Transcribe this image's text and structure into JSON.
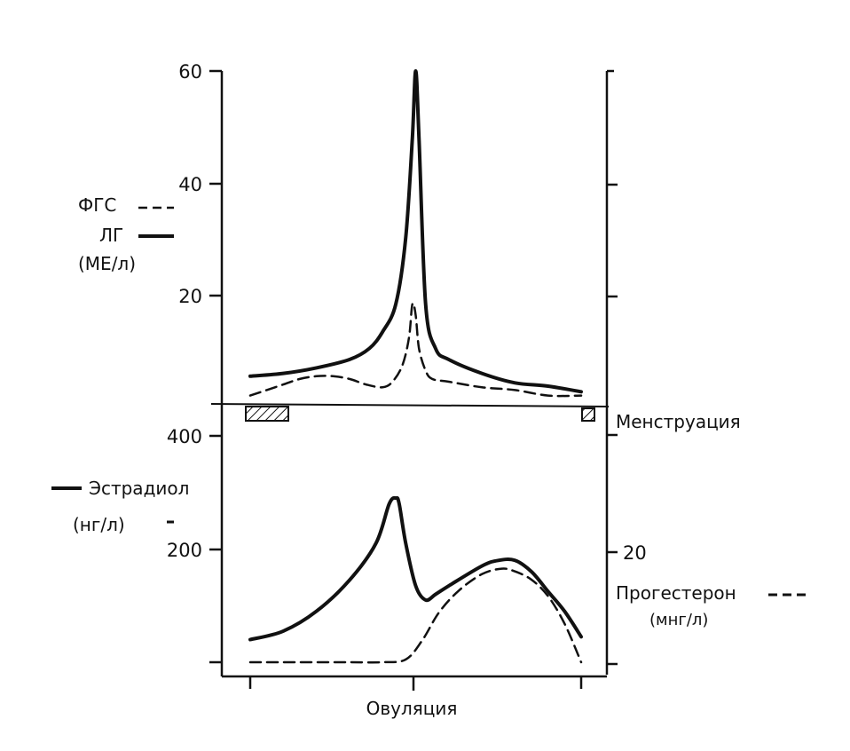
{
  "chart_data": [
    {
      "type": "line",
      "panel": "top",
      "left_axis": {
        "ticks": [
          20,
          40,
          60
        ],
        "ylim": [
          0,
          60
        ]
      },
      "right_axis": {
        "ticks": [
          "",
          "",
          ""
        ]
      },
      "legend_items": [
        {
          "label": "ФГС",
          "style": "dashed"
        },
        {
          "label": "ЛГ",
          "style": "solid"
        }
      ],
      "units_label": "(МЕ/л)",
      "series": [
        {
          "name": "ЛГ",
          "style": "solid",
          "x": [
            0,
            10,
            20,
            30,
            36,
            40,
            44,
            47,
            49,
            50,
            51,
            53,
            56,
            60,
            70,
            80,
            90,
            100
          ],
          "y": [
            5,
            5.5,
            6.5,
            8,
            10,
            13,
            18,
            30,
            48,
            60,
            48,
            18,
            10,
            8,
            5.5,
            3.8,
            3.2,
            2.2
          ]
        },
        {
          "name": "ФГС",
          "style": "dashed",
          "x": [
            0,
            5,
            10,
            15,
            20,
            25,
            30,
            35,
            40,
            43,
            46,
            48,
            49,
            50,
            51,
            53,
            55,
            60,
            70,
            80,
            90,
            100
          ],
          "y": [
            1.5,
            2.5,
            3.5,
            4.5,
            5,
            5,
            4.5,
            3.5,
            3,
            4,
            7,
            12,
            18,
            16,
            10,
            6,
            4.5,
            4,
            3,
            2.5,
            1.5,
            1.5
          ]
        }
      ]
    },
    {
      "type": "line",
      "panel": "bottom",
      "left_axis": {
        "ticks": [
          200,
          400
        ],
        "ylim": [
          0,
          400
        ]
      },
      "right_axis": {
        "ticks": [
          "20"
        ]
      },
      "legend_items": [
        {
          "label": "Эстрадиол",
          "style": "solid"
        },
        {
          "label": "Прогестерон",
          "style": "dashed"
        }
      ],
      "left_units_label": "(нг/л)",
      "right_units_label": "(мнг/л)",
      "menstruation_label": "Менструация",
      "x_label": "Овуляция",
      "series": [
        {
          "name": "Эстрадиол",
          "style": "solid",
          "x": [
            0,
            10,
            20,
            30,
            38,
            42,
            44,
            45,
            47,
            50,
            53,
            56,
            60,
            70,
            75,
            80,
            85,
            90,
            95,
            100
          ],
          "y": [
            40,
            55,
            90,
            145,
            210,
            280,
            290,
            280,
            210,
            135,
            110,
            120,
            135,
            170,
            180,
            180,
            160,
            125,
            90,
            45
          ]
        },
        {
          "name": "Прогестерон",
          "style": "dashed",
          "x": [
            0,
            10,
            20,
            30,
            40,
            47,
            52,
            57,
            63,
            70,
            76,
            80,
            85,
            90,
            95,
            100
          ],
          "y": [
            0,
            0,
            0,
            0,
            0,
            0.5,
            4,
            9,
            13,
            16,
            17,
            16.5,
            15,
            12,
            7,
            0
          ]
        }
      ]
    }
  ]
}
